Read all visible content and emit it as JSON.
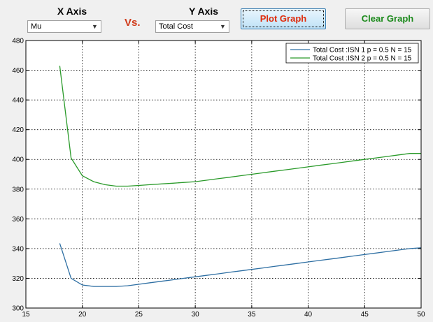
{
  "controls": {
    "x_axis_title": "X Axis",
    "y_axis_title": "Y Axis",
    "vs_label": "Vs.",
    "x_select_value": "Mu",
    "y_select_value": "Total Cost",
    "plot_button": "Plot Graph",
    "clear_button": "Clear Graph"
  },
  "colors": {
    "series1": "#2e6fa3",
    "series2": "#2a9a2a",
    "plot_button_text": "#e02a0a",
    "clear_button_text": "#1b8a1b",
    "vs_text": "#d03a1a"
  },
  "chart_data": {
    "type": "line",
    "xlim": [
      15,
      50
    ],
    "ylim": [
      300,
      480
    ],
    "xticks": [
      15,
      20,
      25,
      30,
      35,
      40,
      45,
      50
    ],
    "yticks": [
      300,
      320,
      340,
      360,
      380,
      400,
      420,
      440,
      460,
      480
    ],
    "grid": true,
    "legend_position": "top-right",
    "series": [
      {
        "name": "Total Cost :ISN 1 p = 0.5 N = 15",
        "x": [
          18,
          19,
          20,
          21,
          22,
          23,
          24,
          25,
          26,
          27,
          28,
          29,
          30,
          31,
          32,
          33,
          34,
          35,
          36,
          37,
          38,
          39,
          40,
          41,
          42,
          43,
          44,
          45,
          46,
          47,
          48,
          49,
          50
        ],
        "y": [
          343.5,
          320,
          315.5,
          314.5,
          314.5,
          314.5,
          315,
          316,
          317,
          318,
          319,
          320,
          321,
          322,
          323,
          324,
          325,
          326,
          327,
          328,
          329,
          330,
          331,
          332,
          333,
          334,
          335,
          336,
          337,
          338,
          339,
          340,
          340.5
        ]
      },
      {
        "name": "Total Cost :ISN 2 p = 0.5 N = 15",
        "x": [
          18,
          19,
          20,
          21,
          22,
          23,
          24,
          25,
          26,
          27,
          28,
          29,
          30,
          31,
          32,
          33,
          34,
          35,
          36,
          37,
          38,
          39,
          40,
          41,
          42,
          43,
          44,
          45,
          46,
          47,
          48,
          49,
          50
        ],
        "y": [
          463,
          401,
          389,
          385,
          383,
          382,
          382,
          382.5,
          383,
          383.5,
          384,
          384.5,
          385,
          386,
          387,
          388,
          389,
          390,
          391,
          392,
          393,
          394,
          395,
          396,
          397,
          398,
          399,
          400,
          401,
          402,
          403,
          404,
          404
        ]
      }
    ]
  }
}
